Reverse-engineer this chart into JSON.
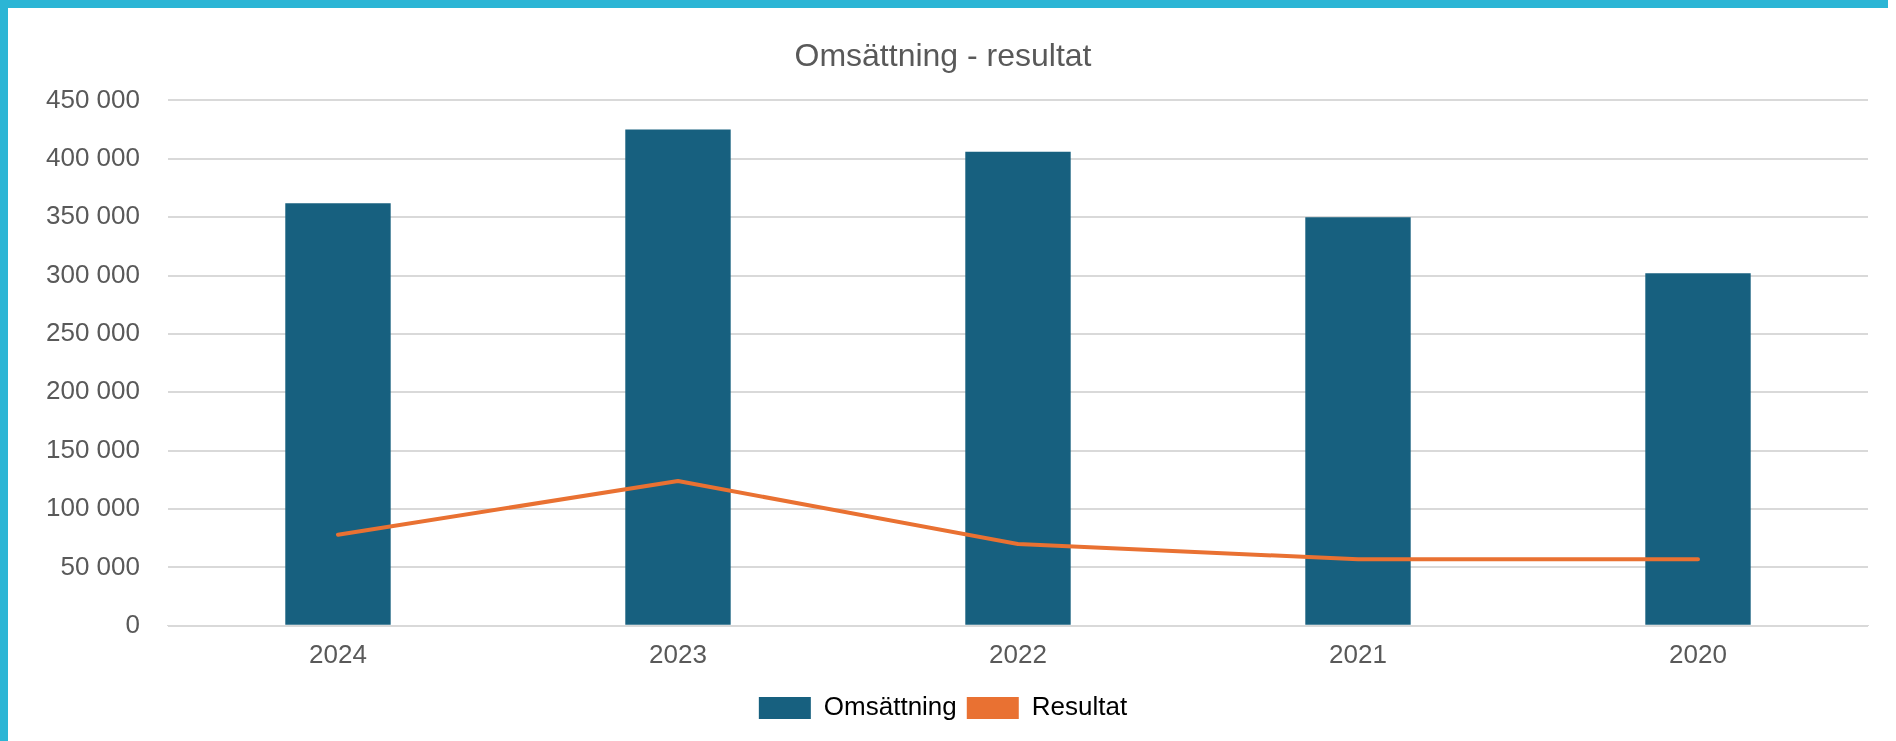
{
  "chart_data": {
    "type": "bar",
    "title": "Omsättning - resultat",
    "categories": [
      "2024",
      "2023",
      "2022",
      "2021",
      "2020"
    ],
    "series": [
      {
        "name": "Omsättning",
        "color": "#17607f",
        "values": [
          362000,
          425000,
          406000,
          350000,
          302000
        ]
      },
      {
        "name": "Resultat",
        "type": "line",
        "color": "#e97132",
        "values": [
          78000,
          124000,
          70000,
          57000,
          57000
        ]
      }
    ],
    "ylim": [
      0,
      450000
    ],
    "yticks": [
      {
        "value": 0,
        "label": "0"
      },
      {
        "value": 50000,
        "label": "50 000"
      },
      {
        "value": 100000,
        "label": "100 000"
      },
      {
        "value": 150000,
        "label": "150 000"
      },
      {
        "value": 200000,
        "label": "200 000"
      },
      {
        "value": 250000,
        "label": "250 000"
      },
      {
        "value": 300000,
        "label": "300 000"
      },
      {
        "value": 350000,
        "label": "350 000"
      },
      {
        "value": 400000,
        "label": "400 000"
      },
      {
        "value": 450000,
        "label": "450 000"
      }
    ],
    "grid": "y",
    "legend": "bottom",
    "marker": "none",
    "line_style": "solid"
  }
}
